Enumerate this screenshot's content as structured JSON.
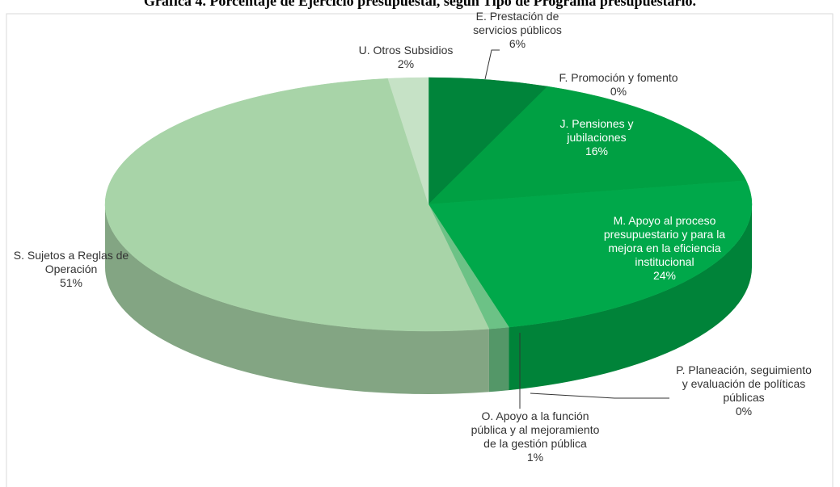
{
  "chart_data": {
    "type": "pie",
    "title": "Gráfica 4. Porcentaje de Ejercicio presupuestal, según Tipo de Programa presupuestario.",
    "categories": [
      "E. Prestación de servicios públicos",
      "F. Promoción y fomento",
      "J. Pensiones y jubilaciones",
      "M. Apoyo al proceso presupuestario y para la mejora en la eficiencia institucional",
      "P. Planeación, seguimiento y evaluación de políticas públicas",
      "O. Apoyo a la función pública y al mejoramiento de la gestión pública",
      "S. Sujetos a Reglas de Operación",
      "U. Otros Subsidios"
    ],
    "values": [
      6,
      0,
      16,
      24,
      0,
      1,
      51,
      2
    ],
    "value_labels": [
      "6%",
      "0%",
      "16%",
      "24%",
      "0%",
      "1%",
      "51%",
      "2%"
    ],
    "colors": [
      "#00843a",
      "#008f3f",
      "#00a043",
      "#00a84a",
      "#3fb868",
      "#6cc286",
      "#a8d4a8",
      "#c6e2c6"
    ]
  }
}
